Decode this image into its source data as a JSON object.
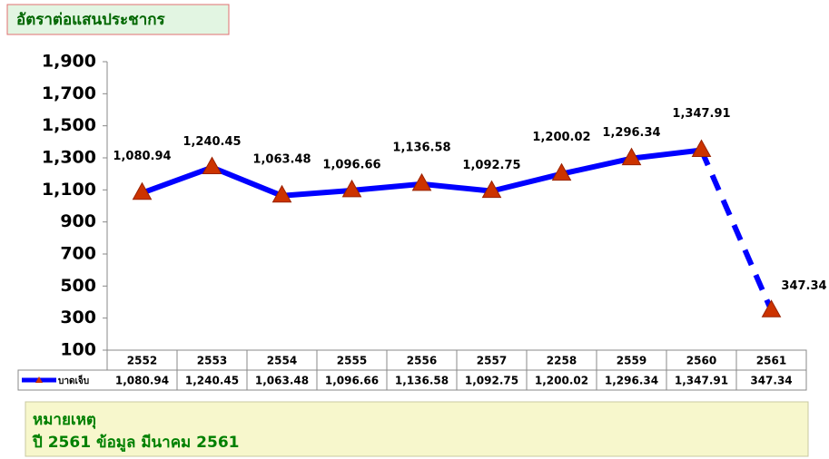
{
  "chart_data": {
    "type": "line",
    "title": "อัตราต่อแสนประชากร",
    "categories": [
      "2552",
      "2553",
      "2554",
      "2555",
      "2556",
      "2557",
      "2258",
      "2559",
      "2560",
      "2561"
    ],
    "series": [
      {
        "name": "บาดเจ็บ",
        "color": "#0000ff",
        "marker_color": "#cc3300",
        "values": [
          1080.94,
          1240.45,
          1063.48,
          1096.66,
          1136.58,
          1092.75,
          1200.02,
          1296.34,
          1347.91,
          347.34
        ],
        "value_labels": [
          "1,080.94",
          "1,240.45",
          "1,063.48",
          "1,096.66",
          "1,136.58",
          "1,092.75",
          "1,200.02",
          "1,296.34",
          "1,347.91",
          "347.34"
        ],
        "dash_from": 8
      }
    ],
    "ylim": [
      100,
      1900
    ],
    "yticks": [
      100,
      300,
      500,
      700,
      900,
      {
        "value": 1100,
        "label": "1,100"
      },
      {
        "value": 1300,
        "label": "1,300"
      },
      {
        "value": 1500,
        "label": "1,500"
      },
      {
        "value": 1700,
        "label": "1,700"
      },
      {
        "value": 1900,
        "label": "1,900"
      }
    ],
    "note": {
      "heading": "หมายเหตุ",
      "text": "ปี 2561 ข้อมูล มีนาคม 2561"
    }
  }
}
